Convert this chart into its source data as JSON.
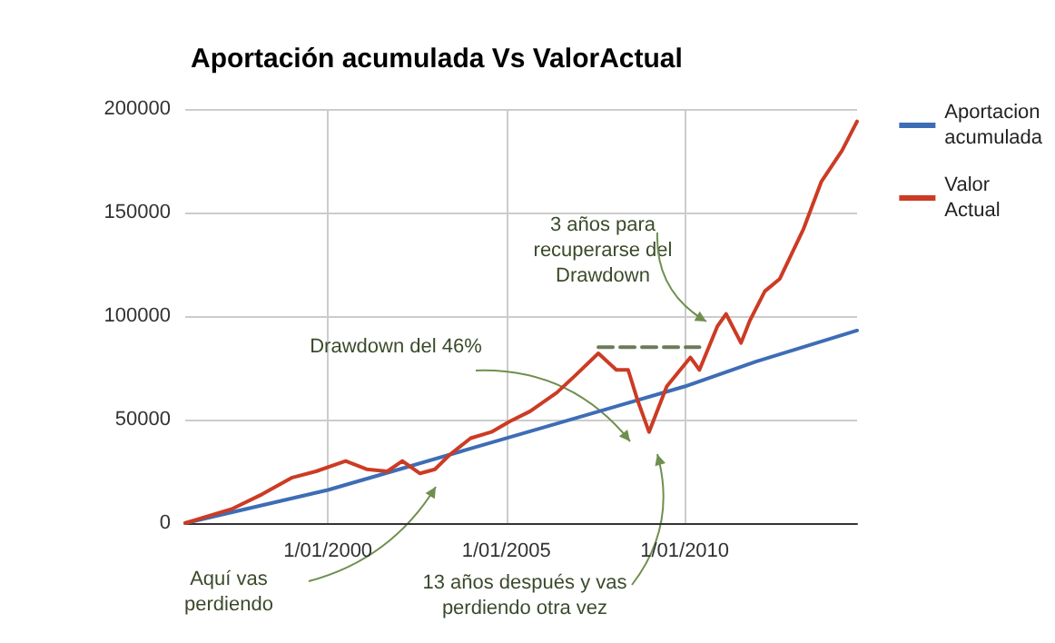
{
  "chart_data": {
    "type": "line",
    "title": "Aportación acumulada Vs ValorActual",
    "xlim": [
      "1996-01",
      "2014-11"
    ],
    "xticks": [
      {
        "value": "2000-01-01",
        "label": "1/01/2000"
      },
      {
        "value": "2005-01-01",
        "label": "1/01/2005"
      },
      {
        "value": "2010-01-01",
        "label": "1/01/2010"
      }
    ],
    "ylim": [
      0,
      200000
    ],
    "yticks": [
      0,
      50000,
      100000,
      150000,
      200000
    ],
    "grid": true,
    "legend": "top right",
    "marker": "none",
    "line_style": "solid",
    "series": [
      {
        "name": "Aportacion\nacumulada",
        "color": "#3d6db5",
        "x": [
          "1996-01",
          "1998-01",
          "2000-01",
          "2002-01",
          "2004-01",
          "2006-01",
          "2008-01",
          "2010-01",
          "2012-01",
          "2014-11"
        ],
        "values": [
          0,
          8000,
          16000,
          26000,
          36000,
          46000,
          56000,
          66000,
          78000,
          93000
        ]
      },
      {
        "name": "Valor\nActual",
        "color": "#cc3b24",
        "x": [
          "1996-01",
          "1997-05",
          "1998-03",
          "1999-01",
          "1999-09",
          "2000-07",
          "2001-02",
          "2001-09",
          "2002-02",
          "2002-08",
          "2003-01",
          "2003-06",
          "2004-01",
          "2004-08",
          "2005-02",
          "2005-09",
          "2006-06",
          "2006-12",
          "2007-08",
          "2008-02",
          "2008-06",
          "2008-09",
          "2009-01",
          "2009-07",
          "2010-03",
          "2010-06",
          "2010-12",
          "2011-03",
          "2011-08",
          "2011-11",
          "2012-04",
          "2012-09",
          "2013-05",
          "2013-11",
          "2014-06",
          "2014-11"
        ],
        "values": [
          0,
          7000,
          14000,
          22000,
          25000,
          30000,
          26000,
          25000,
          30000,
          24000,
          26000,
          33000,
          41000,
          44000,
          49000,
          54000,
          63000,
          71000,
          82000,
          74000,
          74000,
          60000,
          44000,
          66000,
          80000,
          74000,
          95000,
          101000,
          87000,
          98000,
          112000,
          118000,
          142000,
          165000,
          180000,
          194000
        ]
      },
      {
        "color": "#6b7a5a",
        "line_style": "dashed",
        "x": [
          "2007-08",
          "2010-06"
        ],
        "values": [
          85000,
          85000
        ]
      }
    ],
    "annotations": [
      "Drawdown del 46%",
      "3 años para\nrecuperarse del\nDrawdown",
      "Aquí vas\nperdiendo",
      "13 años después y vas\nperdiendo otra vez"
    ]
  }
}
